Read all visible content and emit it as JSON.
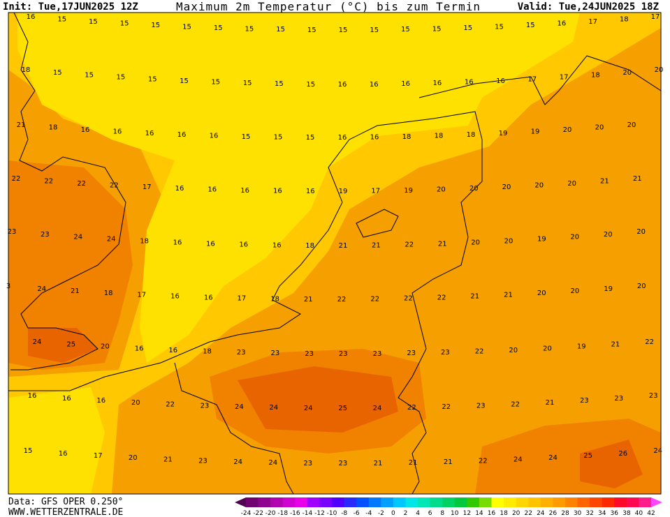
{
  "header": {
    "init": "Init: Tue,17JUN2025 12Z",
    "title": "Maximum 2m Temperatur (°C) bis zum Termin",
    "valid": "Valid: Tue,24JUN2025 18Z"
  },
  "map": {
    "rows": [
      [
        16,
        15,
        15,
        15,
        15,
        15,
        15,
        15,
        15,
        15,
        15,
        15,
        15,
        15,
        15,
        15,
        15,
        16,
        17,
        18,
        17
      ],
      [
        18,
        15,
        15,
        15,
        15,
        15,
        15,
        15,
        15,
        15,
        16,
        16,
        16,
        16,
        16,
        16,
        17,
        17,
        18,
        20,
        20
      ],
      [
        21,
        18,
        16,
        16,
        16,
        16,
        16,
        15,
        15,
        15,
        16,
        16,
        18,
        18,
        18,
        19,
        19,
        20,
        20,
        20
      ],
      [
        22,
        22,
        22,
        22,
        17,
        16,
        16,
        16,
        16,
        16,
        19,
        17,
        19,
        20,
        20,
        20,
        20,
        20,
        21,
        21
      ],
      [
        23,
        23,
        24,
        24,
        18,
        16,
        16,
        16,
        16,
        18,
        21,
        21,
        22,
        21,
        20,
        20,
        19,
        20,
        20,
        20
      ],
      [
        3,
        24,
        21,
        18,
        17,
        16,
        16,
        17,
        18,
        21,
        22,
        22,
        22,
        22,
        21,
        21,
        20,
        20,
        19,
        20
      ],
      [
        24,
        25,
        20,
        16,
        16,
        18,
        23,
        23,
        23,
        23,
        23,
        23,
        23,
        22,
        20,
        20,
        19,
        21,
        22
      ],
      [
        16,
        16,
        16,
        20,
        22,
        23,
        24,
        24,
        24,
        25,
        24,
        22,
        22,
        23,
        22,
        21,
        23,
        23,
        23
      ],
      [
        15,
        16,
        17,
        20,
        21,
        23,
        24,
        24,
        23,
        23,
        21,
        21,
        21,
        22,
        24,
        24,
        25,
        26,
        24
      ]
    ]
  },
  "footer": {
    "data": "Data: GFS OPER 0.250°",
    "site": "WWW.WETTERZENTRALE.DE"
  },
  "colorbar": {
    "ticks": [
      -24,
      -22,
      -20,
      -18,
      -16,
      -14,
      -12,
      -10,
      -8,
      -6,
      -4,
      -2,
      0,
      2,
      4,
      6,
      8,
      10,
      12,
      14,
      16,
      18,
      20,
      22,
      24,
      26,
      28,
      30,
      32,
      34,
      36,
      38,
      40,
      42
    ],
    "colors": [
      "#500050",
      "#700070",
      "#900090",
      "#b000b0",
      "#d000d0",
      "#e800e8",
      "#a000ff",
      "#7800ff",
      "#5000ff",
      "#2828ff",
      "#0050ff",
      "#0078ff",
      "#00a0ff",
      "#00c8ff",
      "#00e6e6",
      "#00e6b4",
      "#00dc8c",
      "#00d264",
      "#00c83c",
      "#32c800",
      "#78dc00",
      "#ffff00",
      "#ffeb00",
      "#ffd700",
      "#ffc300",
      "#ffaf00",
      "#ff9b00",
      "#ff8200",
      "#ff6400",
      "#ff4600",
      "#ff2800",
      "#ff0a28",
      "#ff0a50",
      "#ff1e8c",
      "#ff46ff"
    ]
  }
}
